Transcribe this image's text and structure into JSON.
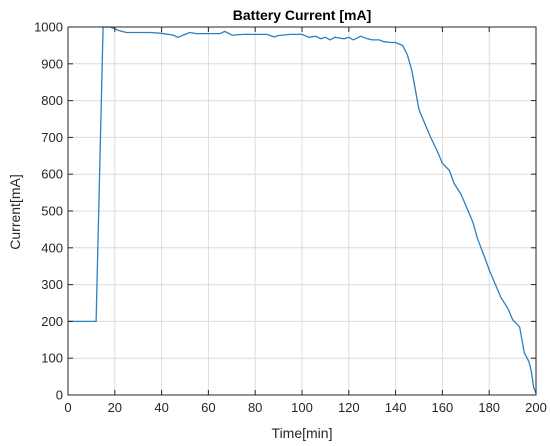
{
  "chart_data": {
    "type": "line",
    "title": "Battery Current [mA]",
    "xlabel": "Time[min]",
    "ylabel": "Current[mA]",
    "xlim": [
      0,
      200
    ],
    "ylim": [
      0,
      1000
    ],
    "xticks": [
      "0",
      "20",
      "40",
      "60",
      "80",
      "100",
      "120",
      "140",
      "160",
      "180",
      "200"
    ],
    "yticks": [
      "0",
      "100",
      "200",
      "300",
      "400",
      "500",
      "600",
      "700",
      "800",
      "900",
      "1000"
    ],
    "grid": true,
    "series_color": "#2e7fbd",
    "series": [
      {
        "x": [
          0,
          12,
          15,
          16,
          18,
          20,
          22,
          25,
          30,
          35,
          40,
          45,
          47,
          50,
          52,
          55,
          60,
          65,
          67,
          70,
          75,
          80,
          85,
          88,
          90,
          95,
          100,
          103,
          106,
          108,
          110,
          112,
          114,
          116,
          118,
          120,
          122,
          125,
          128,
          130,
          133,
          135,
          138,
          140,
          141,
          143,
          145,
          147,
          150,
          153,
          155,
          158,
          160,
          163,
          165,
          168,
          170,
          173,
          175,
          178,
          180,
          183,
          185,
          188,
          190,
          193,
          195,
          197,
          198,
          199,
          200
        ],
        "y": [
          200,
          200,
          1000,
          1000,
          1000,
          995,
          990,
          985,
          985,
          985,
          983,
          978,
          972,
          980,
          985,
          982,
          982,
          982,
          988,
          978,
          980,
          980,
          980,
          973,
          977,
          980,
          980,
          972,
          975,
          968,
          972,
          965,
          972,
          970,
          968,
          972,
          965,
          975,
          968,
          965,
          965,
          960,
          958,
          958,
          955,
          950,
          925,
          880,
          775,
          730,
          700,
          660,
          630,
          610,
          575,
          545,
          515,
          470,
          425,
          375,
          340,
          295,
          265,
          235,
          205,
          185,
          115,
          90,
          65,
          20,
          5
        ]
      }
    ]
  }
}
